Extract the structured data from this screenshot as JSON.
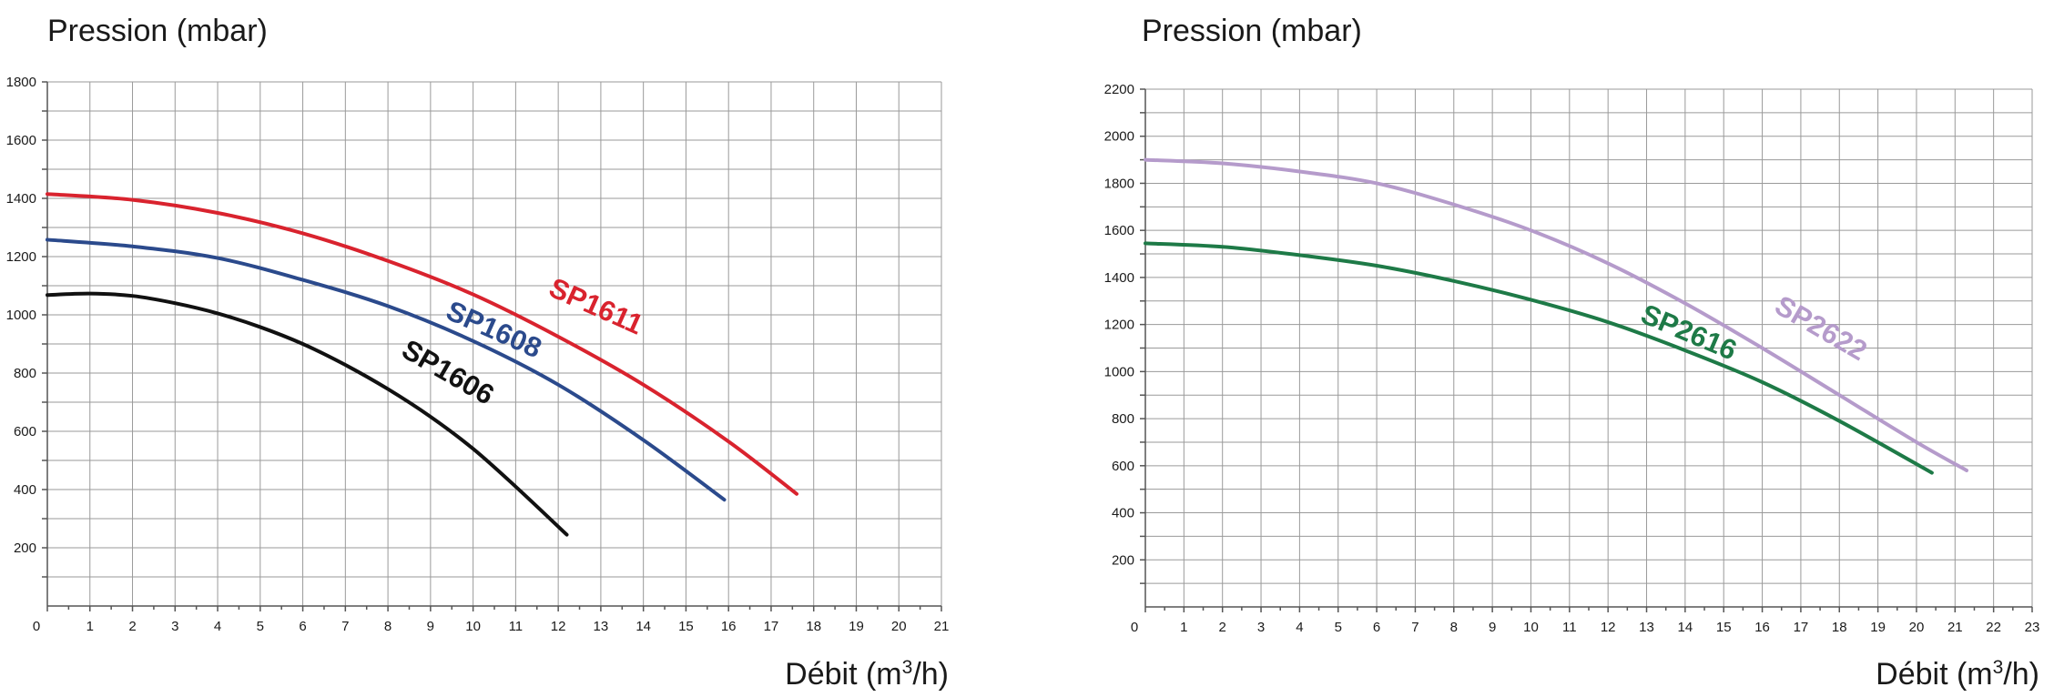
{
  "chart_data": [
    {
      "type": "line",
      "ylabel": "Pression (mbar)",
      "xlabel_main": "Débit (m",
      "xlabel_sup": "3",
      "xlabel_end": "/h)",
      "xlim": [
        0,
        21
      ],
      "ylim": [
        0,
        1800
      ],
      "xticks": [
        0,
        1,
        2,
        3,
        4,
        5,
        6,
        7,
        8,
        9,
        10,
        11,
        12,
        13,
        14,
        15,
        16,
        17,
        18,
        19,
        20,
        21
      ],
      "yticks": [
        200,
        400,
        600,
        800,
        1000,
        1200,
        1400,
        1600,
        1800
      ],
      "series": [
        {
          "name": "SP1606",
          "color": "#111111",
          "bold": false,
          "x": [
            0,
            1,
            2,
            3,
            4,
            5,
            6,
            7,
            8,
            9,
            10,
            11,
            12.2
          ],
          "y": [
            1068,
            1073,
            1065,
            1040,
            1005,
            958,
            900,
            828,
            745,
            650,
            540,
            410,
            245
          ]
        },
        {
          "name": "SP1608",
          "color": "#2b4a8c",
          "bold": true,
          "x": [
            0,
            2,
            4,
            6,
            8,
            10,
            12,
            14,
            15.9
          ],
          "y": [
            1258,
            1235,
            1195,
            1120,
            1030,
            910,
            760,
            570,
            365
          ]
        },
        {
          "name": "SP1611",
          "color": "#d9232e",
          "bold": true,
          "x": [
            0,
            2,
            4,
            6,
            8,
            10,
            12,
            14,
            16,
            17.6
          ],
          "y": [
            1415,
            1395,
            1350,
            1280,
            1185,
            1070,
            925,
            760,
            565,
            385
          ]
        }
      ]
    },
    {
      "type": "line",
      "ylabel": "Pression (mbar)",
      "xlabel_main": "Débit (m",
      "xlabel_sup": "3",
      "xlabel_end": "/h)",
      "xlim": [
        0,
        23
      ],
      "ylim": [
        0,
        2200
      ],
      "xticks": [
        0,
        1,
        2,
        3,
        4,
        5,
        6,
        7,
        8,
        9,
        10,
        11,
        12,
        13,
        14,
        15,
        16,
        17,
        18,
        19,
        20,
        21,
        22,
        23
      ],
      "yticks": [
        200,
        400,
        600,
        800,
        1000,
        1200,
        1400,
        1600,
        1800,
        2000,
        2200
      ],
      "series": [
        {
          "name": "SP2616",
          "color": "#1e7a47",
          "bold": true,
          "x": [
            0,
            2,
            4,
            6,
            8,
            10,
            12,
            14,
            16,
            18,
            20.4
          ],
          "y": [
            1545,
            1530,
            1495,
            1450,
            1385,
            1305,
            1210,
            1090,
            955,
            790,
            570
          ]
        },
        {
          "name": "SP2622",
          "color": "#b59bcb",
          "bold": true,
          "x": [
            0,
            2,
            4,
            6,
            8,
            10,
            12,
            14,
            16,
            18,
            20,
            21.3
          ],
          "y": [
            1900,
            1885,
            1850,
            1800,
            1710,
            1600,
            1460,
            1290,
            1100,
            900,
            700,
            580
          ]
        }
      ]
    }
  ]
}
